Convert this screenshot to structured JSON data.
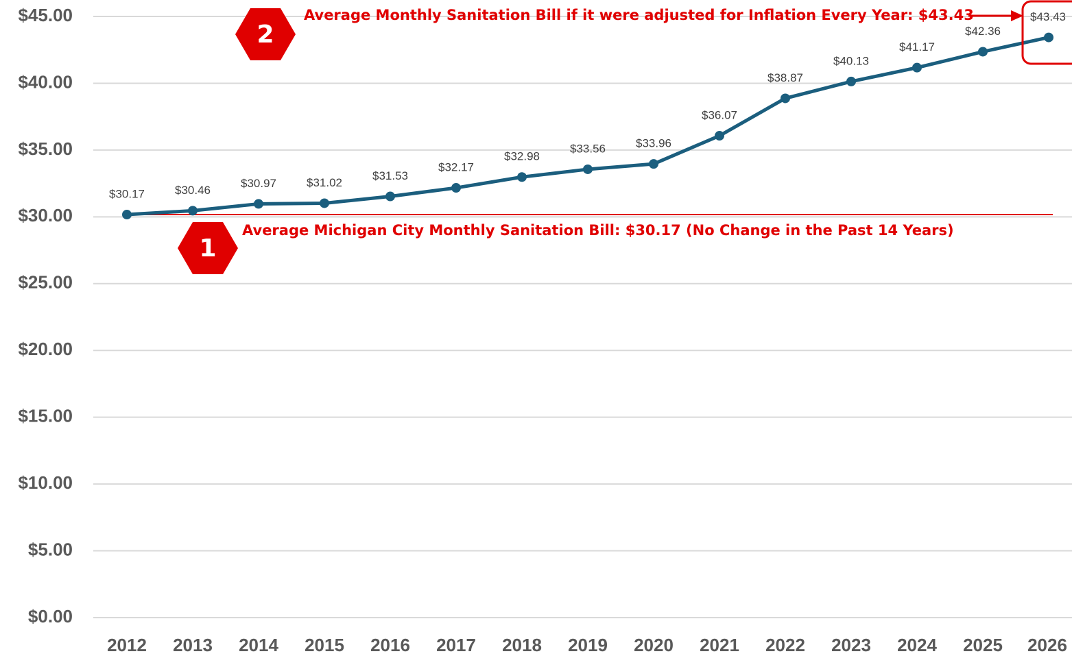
{
  "chart_data": {
    "type": "line",
    "categories": [
      "2012",
      "2013",
      "2014",
      "2015",
      "2016",
      "2017",
      "2018",
      "2019",
      "2020",
      "2021",
      "2022",
      "2023",
      "2024",
      "2025",
      "2026"
    ],
    "series": [
      {
        "color": "#1b5e7e",
        "values": [
          30.17,
          30.46,
          30.97,
          31.02,
          31.53,
          32.17,
          32.98,
          33.56,
          33.96,
          36.07,
          38.87,
          40.13,
          41.17,
          42.36,
          43.43
        ],
        "value_labels": [
          "$30.17",
          "$30.46",
          "$30.97",
          "$31.02",
          "$31.53",
          "$32.17",
          "$32.98",
          "$33.56",
          "$33.96",
          "$36.07",
          "$38.87",
          "$40.13",
          "$41.17",
          "$42.36",
          "$43.43"
        ]
      }
    ],
    "ylim": [
      0,
      45
    ],
    "yticks": [
      {
        "value": 0,
        "label": "$0.00"
      },
      {
        "value": 5,
        "label": "$5.00"
      },
      {
        "value": 10,
        "label": "$10.00"
      },
      {
        "value": 15,
        "label": "$15.00"
      },
      {
        "value": 20,
        "label": "$20.00"
      },
      {
        "value": 25,
        "label": "$25.00"
      },
      {
        "value": 30,
        "label": "$30.00"
      },
      {
        "value": 35,
        "label": "$35.00"
      },
      {
        "value": 40,
        "label": "$40.00"
      },
      {
        "value": 45,
        "label": "$45.00"
      }
    ],
    "grid": true,
    "reference_line": {
      "value": 30.17,
      "color": "#e00000"
    },
    "annotations": [
      {
        "badge": "1",
        "text": "Average Michigan City Monthly Sanitation Bill: $30.17 (No Change in the Past 14 Years)"
      },
      {
        "badge": "2",
        "text": "Average Monthly Sanitation Bill if it were adjusted for Inflation Every Year: $43.43"
      }
    ]
  }
}
